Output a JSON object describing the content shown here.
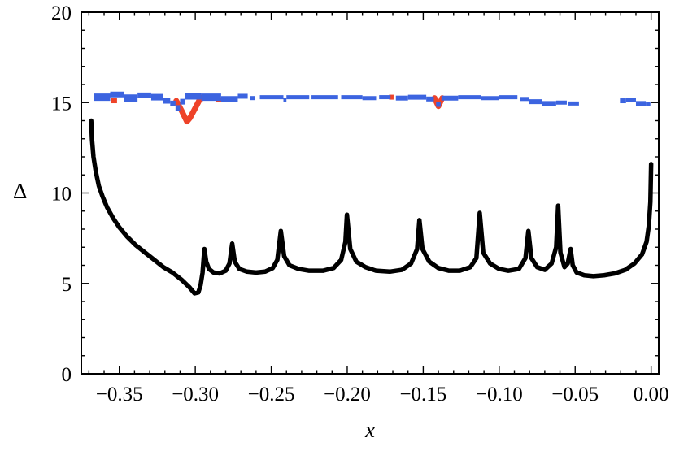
{
  "chart_data": {
    "type": "line",
    "title": "",
    "xlabel": "x",
    "ylabel": "Δ",
    "xlim": [
      -0.375,
      0.005
    ],
    "ylim": [
      0,
      20
    ],
    "frame": true,
    "grid": false,
    "legend": "none",
    "background": "#ffffff",
    "xticks": [
      -0.35,
      -0.3,
      -0.25,
      -0.2,
      -0.15,
      -0.1,
      -0.05,
      0.0
    ],
    "xtick_labels": [
      "−0.35",
      "−0.30",
      "−0.25",
      "−0.20",
      "−0.15",
      "−0.10",
      "−0.05",
      "0.00"
    ],
    "xtick_minor_step": 0.01,
    "yticks": [
      0,
      5,
      10,
      15,
      20
    ],
    "ytick_labels": [
      "0",
      "5",
      "10",
      "15",
      "20"
    ],
    "ytick_minor_step": 1,
    "series": [
      {
        "name": "black-gap-curve",
        "color": "#000000",
        "width": 5.5,
        "points": [
          [
            -0.3685,
            14.0
          ],
          [
            -0.368,
            13.0
          ],
          [
            -0.367,
            12.0
          ],
          [
            -0.3655,
            11.2
          ],
          [
            -0.3635,
            10.4
          ],
          [
            -0.361,
            9.8
          ],
          [
            -0.358,
            9.2
          ],
          [
            -0.354,
            8.6
          ],
          [
            -0.35,
            8.1
          ],
          [
            -0.345,
            7.6
          ],
          [
            -0.339,
            7.1
          ],
          [
            -0.333,
            6.7
          ],
          [
            -0.327,
            6.3
          ],
          [
            -0.321,
            5.9
          ],
          [
            -0.315,
            5.6
          ],
          [
            -0.309,
            5.2
          ],
          [
            -0.304,
            4.8
          ],
          [
            -0.3005,
            4.45
          ],
          [
            -0.298,
            4.5
          ],
          [
            -0.2965,
            4.9
          ],
          [
            -0.2952,
            5.6
          ],
          [
            -0.294,
            6.9
          ],
          [
            -0.2928,
            6.2
          ],
          [
            -0.291,
            5.8
          ],
          [
            -0.288,
            5.6
          ],
          [
            -0.284,
            5.55
          ],
          [
            -0.28,
            5.7
          ],
          [
            -0.2775,
            6.1
          ],
          [
            -0.2757,
            7.2
          ],
          [
            -0.274,
            6.2
          ],
          [
            -0.271,
            5.8
          ],
          [
            -0.266,
            5.65
          ],
          [
            -0.26,
            5.6
          ],
          [
            -0.254,
            5.65
          ],
          [
            -0.249,
            5.85
          ],
          [
            -0.246,
            6.3
          ],
          [
            -0.2437,
            7.9
          ],
          [
            -0.2415,
            6.5
          ],
          [
            -0.238,
            6.0
          ],
          [
            -0.232,
            5.8
          ],
          [
            -0.225,
            5.7
          ],
          [
            -0.216,
            5.7
          ],
          [
            -0.209,
            5.85
          ],
          [
            -0.204,
            6.3
          ],
          [
            -0.2012,
            7.3
          ],
          [
            -0.2002,
            8.8
          ],
          [
            -0.198,
            6.9
          ],
          [
            -0.194,
            6.2
          ],
          [
            -0.188,
            5.9
          ],
          [
            -0.181,
            5.7
          ],
          [
            -0.172,
            5.65
          ],
          [
            -0.164,
            5.75
          ],
          [
            -0.158,
            6.1
          ],
          [
            -0.154,
            6.9
          ],
          [
            -0.1525,
            8.5
          ],
          [
            -0.1505,
            6.9
          ],
          [
            -0.146,
            6.2
          ],
          [
            -0.14,
            5.85
          ],
          [
            -0.133,
            5.7
          ],
          [
            -0.126,
            5.7
          ],
          [
            -0.119,
            5.9
          ],
          [
            -0.115,
            6.4
          ],
          [
            -0.1128,
            8.9
          ],
          [
            -0.1105,
            6.7
          ],
          [
            -0.106,
            6.1
          ],
          [
            -0.1,
            5.8
          ],
          [
            -0.094,
            5.7
          ],
          [
            -0.087,
            5.8
          ],
          [
            -0.0827,
            6.4
          ],
          [
            -0.0808,
            7.9
          ],
          [
            -0.0788,
            6.4
          ],
          [
            -0.075,
            5.9
          ],
          [
            -0.07,
            5.75
          ],
          [
            -0.0655,
            6.1
          ],
          [
            -0.0625,
            7.0
          ],
          [
            -0.0612,
            9.3
          ],
          [
            -0.0597,
            6.7
          ],
          [
            -0.057,
            5.9
          ],
          [
            -0.0549,
            6.1
          ],
          [
            -0.053,
            6.9
          ],
          [
            -0.0516,
            6.0
          ],
          [
            -0.049,
            5.6
          ],
          [
            -0.044,
            5.45
          ],
          [
            -0.038,
            5.4
          ],
          [
            -0.031,
            5.45
          ],
          [
            -0.024,
            5.55
          ],
          [
            -0.017,
            5.75
          ],
          [
            -0.011,
            6.1
          ],
          [
            -0.006,
            6.6
          ],
          [
            -0.003,
            7.3
          ],
          [
            -0.0015,
            8.2
          ],
          [
            -0.0005,
            9.5
          ],
          [
            0.0,
            11.6
          ]
        ]
      },
      {
        "name": "red-band",
        "color": "#ee4329",
        "width": 7,
        "segments": [
          [
            -0.3555,
            -0.3515,
            15.1,
            6
          ],
          [
            -0.2865,
            -0.2825,
            15.15,
            6
          ],
          [
            -0.1725,
            -0.1695,
            15.3,
            6
          ]
        ],
        "lines": [
          [
            [
              -0.3125,
              15.1
            ],
            [
              -0.309,
              14.55
            ],
            [
              -0.3055,
              13.95
            ],
            [
              -0.3035,
              14.15
            ],
            [
              -0.3,
              14.7
            ],
            [
              -0.2975,
              15.1
            ],
            [
              -0.295,
              15.3
            ]
          ],
          [
            [
              -0.1425,
              15.25
            ],
            [
              -0.14,
              14.8
            ],
            [
              -0.1375,
              15.25
            ]
          ]
        ]
      },
      {
        "name": "blue-band",
        "color": "#3c64e0",
        "width": 6,
        "segments": [
          [
            -0.3665,
            -0.356,
            15.3,
            9
          ],
          [
            -0.356,
            -0.347,
            15.45,
            7
          ],
          [
            -0.347,
            -0.338,
            15.25,
            9
          ],
          [
            -0.338,
            -0.329,
            15.4,
            7
          ],
          [
            -0.329,
            -0.321,
            15.3,
            8
          ],
          [
            -0.321,
            -0.3165,
            15.1,
            7
          ],
          [
            -0.3165,
            -0.313,
            14.95,
            7
          ],
          [
            -0.313,
            -0.31,
            14.7,
            7
          ],
          [
            -0.31,
            -0.307,
            15.05,
            7
          ],
          [
            -0.307,
            -0.296,
            15.35,
            8
          ],
          [
            -0.296,
            -0.283,
            15.3,
            9
          ],
          [
            -0.283,
            -0.272,
            15.2,
            7
          ],
          [
            -0.272,
            -0.2655,
            15.35,
            6
          ],
          [
            -0.264,
            -0.2605,
            15.25,
            5
          ],
          [
            -0.2575,
            -0.242,
            15.3,
            5
          ],
          [
            -0.242,
            -0.24,
            15.15,
            5
          ],
          [
            -0.24,
            -0.225,
            15.3,
            5
          ],
          [
            -0.2235,
            -0.206,
            15.3,
            5
          ],
          [
            -0.204,
            -0.19,
            15.3,
            5
          ],
          [
            -0.19,
            -0.181,
            15.25,
            5
          ],
          [
            -0.179,
            -0.1715,
            15.3,
            5
          ],
          [
            -0.168,
            -0.16,
            15.25,
            6
          ],
          [
            -0.16,
            -0.148,
            15.3,
            6
          ],
          [
            -0.148,
            -0.143,
            15.2,
            6
          ],
          [
            -0.1415,
            -0.1385,
            14.9,
            6
          ],
          [
            -0.138,
            -0.127,
            15.25,
            6
          ],
          [
            -0.127,
            -0.112,
            15.3,
            5
          ],
          [
            -0.112,
            -0.1,
            15.25,
            5
          ],
          [
            -0.1,
            -0.088,
            15.3,
            5
          ],
          [
            -0.0865,
            -0.0805,
            15.2,
            5
          ],
          [
            -0.0805,
            -0.072,
            15.05,
            6
          ],
          [
            -0.072,
            -0.0625,
            14.95,
            6
          ],
          [
            -0.0625,
            -0.0555,
            15.0,
            5
          ],
          [
            -0.0545,
            -0.0475,
            14.95,
            5
          ],
          [
            -0.0205,
            -0.0165,
            15.1,
            6
          ],
          [
            -0.0165,
            -0.01,
            15.15,
            5
          ],
          [
            -0.01,
            -0.0035,
            14.95,
            6
          ],
          [
            -0.0035,
            -0.0005,
            14.9,
            5
          ]
        ]
      }
    ]
  }
}
